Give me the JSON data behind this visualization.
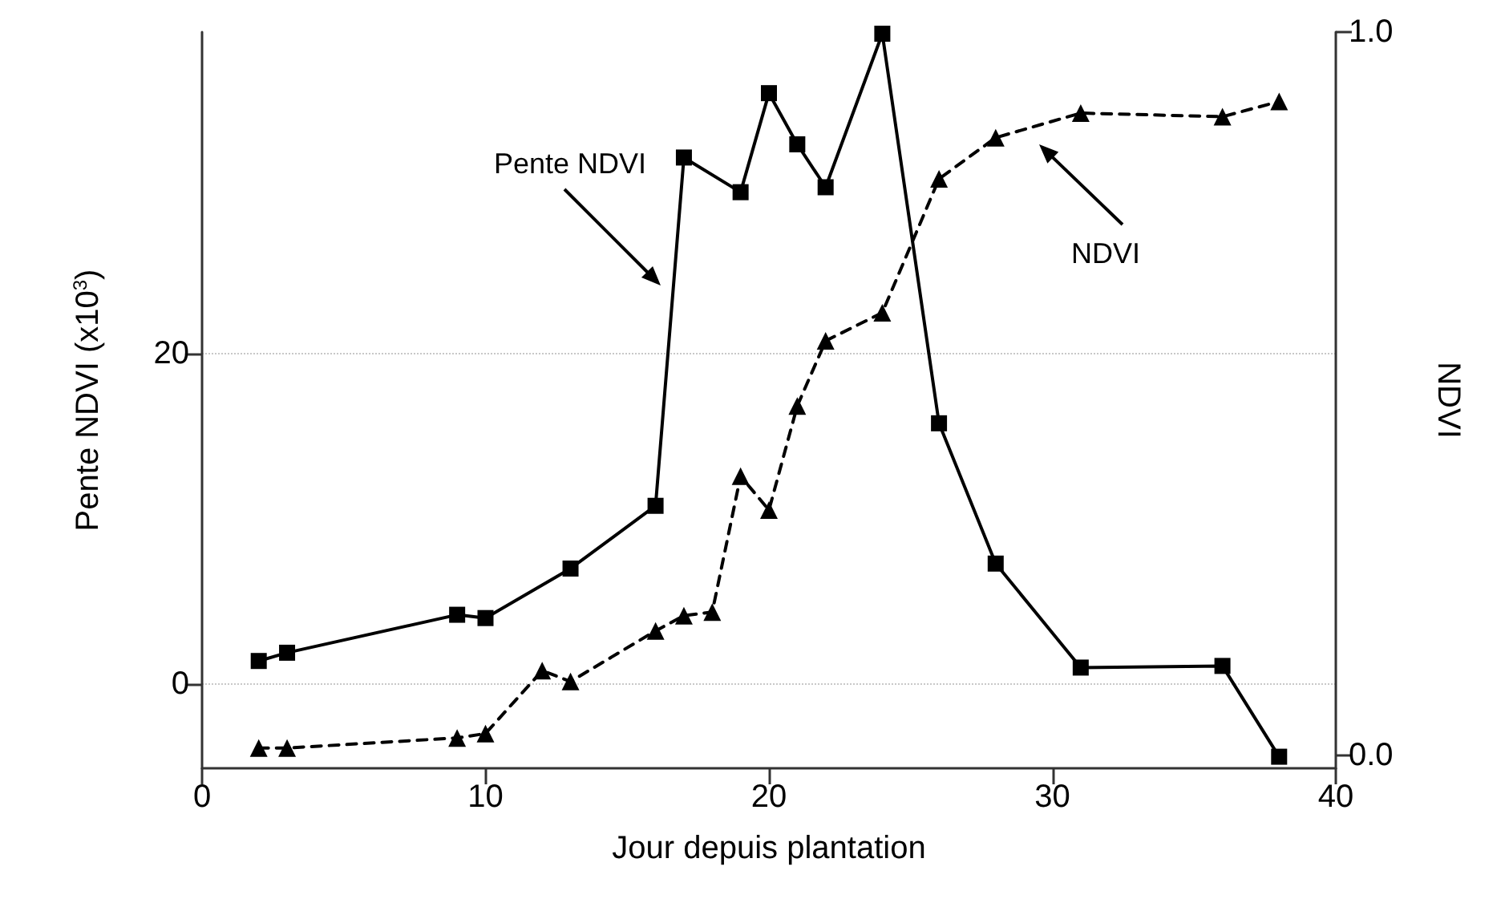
{
  "chart_data": {
    "type": "line",
    "xlabel": "Jour depuis plantation",
    "ylabel": "Pente NDVI (x10$^{3}$)",
    "y2label": "NDVI",
    "xlim": [
      0,
      40
    ],
    "xticks": [
      0,
      10,
      20,
      30,
      40
    ],
    "ylim": [
      -5.1,
      39.5
    ],
    "yticks": [
      0,
      20
    ],
    "y2lim": [
      -0.018,
      1.0
    ],
    "y2ticks": [
      {
        "value": 0,
        "label": "0.0"
      },
      {
        "value": 1,
        "label": "1.0"
      }
    ],
    "grid": "y",
    "series": [
      {
        "color": "#000000",
        "marker": "square",
        "line_style": "solid",
        "x": [
          2,
          3,
          9,
          10,
          13,
          16,
          17,
          19,
          20,
          21,
          22,
          24,
          26,
          28,
          31,
          36,
          38
        ],
        "values": [
          1.4,
          1.9,
          4.2,
          4.0,
          7.0,
          10.8,
          31.9,
          29.8,
          35.8,
          32.7,
          30.1,
          39.4,
          15.8,
          7.3,
          1.0,
          1.1,
          -4.4
        ]
      },
      {
        "color": "#000000",
        "marker": "triangle",
        "line_style": "dashed",
        "axis": "y2",
        "x": [
          2,
          3,
          9,
          10,
          12,
          13,
          16,
          17,
          18,
          19,
          20,
          21,
          22,
          24,
          26,
          28,
          31,
          36,
          38
        ],
        "values": [
          0.01,
          0.01,
          0.024,
          0.03,
          0.117,
          0.102,
          0.172,
          0.193,
          0.198,
          0.386,
          0.339,
          0.483,
          0.573,
          0.612,
          0.797,
          0.854,
          0.888,
          0.883,
          0.904
        ]
      }
    ],
    "annotations": [
      "Pente NDVI",
      "NDVI"
    ]
  }
}
